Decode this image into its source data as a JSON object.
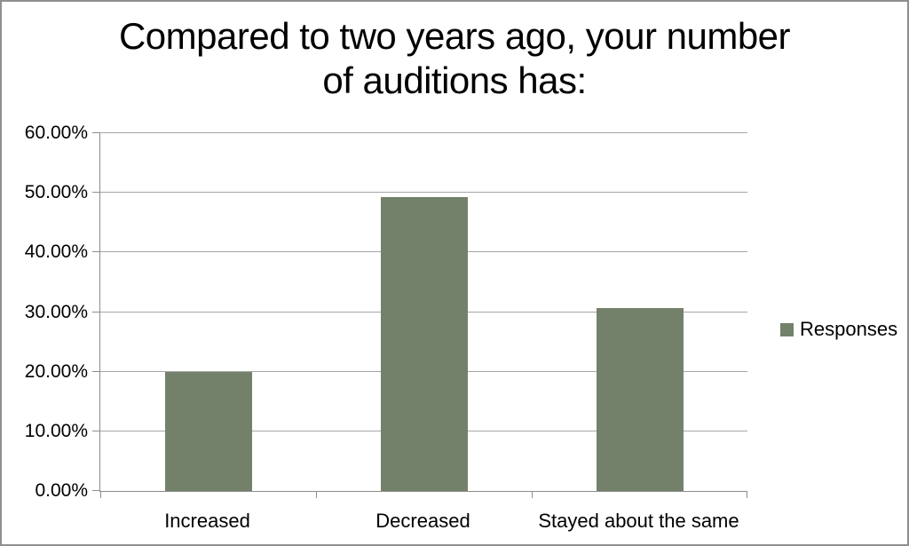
{
  "window": {
    "background": "#ffffff",
    "border_color": "#8f8f8f"
  },
  "title": {
    "line1": "Compared to two years ago, your number",
    "line2": "of auditions has:"
  },
  "legend": {
    "label": "Responses",
    "swatch_color": "#73816B"
  },
  "chart_data": {
    "type": "bar",
    "title": "Compared to two years ago, your number of auditions has:",
    "categories": [
      "Increased",
      "Decreased",
      "Stayed about the same"
    ],
    "series": [
      {
        "name": "Responses",
        "values": [
          20.0,
          49.33,
          30.67
        ]
      }
    ],
    "value_format": "percent",
    "ylim": [
      0,
      60
    ],
    "ytick_step": 10,
    "ytick_labels": [
      "0.00%",
      "10.00%",
      "20.00%",
      "30.00%",
      "40.00%",
      "50.00%",
      "60.00%"
    ],
    "grid": true,
    "legend_position": "right",
    "bar_color": "#73816B",
    "gridline_color": "#a6a6a6",
    "axis_color": "#8c8c8c"
  }
}
